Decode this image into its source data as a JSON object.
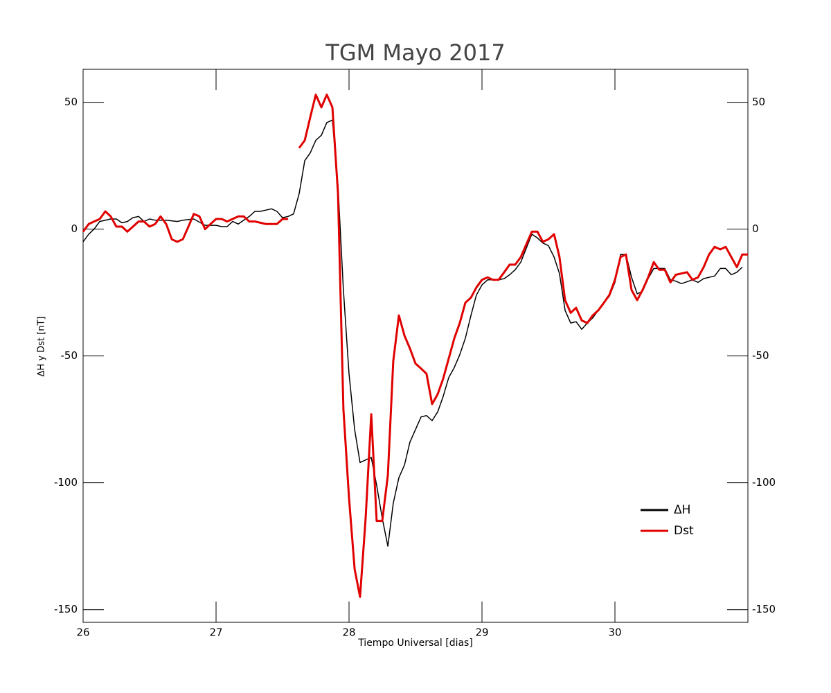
{
  "chart_data": {
    "type": "line",
    "title": "TGM Mayo 2017",
    "x_label": "Tiempo Universal [dias]",
    "y_label": "ΔH y Dst [nT]",
    "xlim": [
      26,
      31
    ],
    "xticks": [
      26,
      27,
      28,
      29,
      30
    ],
    "ylim": [
      -155,
      63
    ],
    "yticks": [
      -150,
      -100,
      -50,
      0,
      50
    ],
    "legend": "lower right",
    "series": [
      {
        "name": "ΔH",
        "color": "#000000",
        "x": [
          26,
          26.042,
          26.083,
          26.125,
          26.208,
          26.25,
          26.292,
          26.333,
          26.375,
          26.417,
          26.458,
          26.5,
          26.542,
          26.625,
          26.708,
          26.75,
          26.833,
          26.917,
          26.958,
          27,
          27.042,
          27.083,
          27.125,
          27.167,
          27.208,
          27.25,
          27.292,
          27.333,
          27.417,
          27.458,
          27.5,
          27.542,
          27.583,
          27.625,
          27.667,
          27.708,
          27.75,
          27.792,
          27.833,
          27.875,
          27.917,
          27.958,
          28,
          28.042,
          28.083,
          28.125,
          28.167,
          28.208,
          28.25,
          28.292,
          28.333,
          28.375,
          28.417,
          28.458,
          28.5,
          28.542,
          28.583,
          28.625,
          28.667,
          28.708,
          28.75,
          28.792,
          28.833,
          28.875,
          28.917,
          28.958,
          29,
          29.042,
          29.083,
          29.125,
          29.167,
          29.208,
          29.25,
          29.292,
          29.375,
          29.417,
          29.458,
          29.5,
          29.542,
          29.583,
          29.625,
          29.667,
          29.708,
          29.75,
          29.792,
          29.833,
          29.875,
          29.917,
          29.958,
          30,
          30.042,
          30.083,
          30.125,
          30.167,
          30.208,
          30.25,
          30.292,
          30.333,
          30.375,
          30.417,
          30.458,
          30.5,
          30.583,
          30.625,
          30.667,
          30.708,
          30.75,
          30.792,
          30.833,
          30.875,
          30.917,
          30.958
        ],
        "values": [
          -5,
          -2,
          0,
          3,
          4,
          4,
          2.5,
          3,
          4.5,
          5,
          3,
          4,
          3.5,
          3.5,
          3,
          3.5,
          4,
          1.5,
          1.5,
          1.5,
          1,
          1,
          3,
          2,
          3.5,
          5,
          7,
          7,
          8,
          7,
          4.5,
          5,
          6,
          14,
          27,
          30,
          35,
          37,
          42,
          43,
          17,
          -24,
          -57,
          -79,
          -92,
          -91,
          -90,
          -101,
          -114,
          -125,
          -108,
          -98,
          -93,
          -84,
          -79,
          -74,
          -73.5,
          -75.5,
          -72,
          -66,
          -58.5,
          -54.5,
          -49.5,
          -43,
          -34,
          -26,
          -22,
          -20,
          -20,
          -20,
          -19.5,
          -18,
          -16,
          -13,
          -2,
          -3.5,
          -5.5,
          -6.5,
          -11,
          -17.5,
          -32,
          -37,
          -36.5,
          -39.5,
          -37,
          -35,
          -32,
          -29,
          -26.5,
          -21,
          -10,
          -10,
          -19,
          -25.5,
          -24.5,
          -19.5,
          -15.5,
          -15.5,
          -15.5,
          -20,
          -20.5,
          -21.5,
          -20,
          -21,
          -19.5,
          -19,
          -18.5,
          -15.5,
          -15.5,
          -18,
          -17,
          -15
        ]
      },
      {
        "name": "Dst",
        "color": "#e00000",
        "x": [
          26,
          26.042,
          26.125,
          26.167,
          26.208,
          26.25,
          26.292,
          26.333,
          26.375,
          26.417,
          26.458,
          26.5,
          26.542,
          26.583,
          26.625,
          26.667,
          26.708,
          26.75,
          26.792,
          26.833,
          26.875,
          26.917,
          26.958,
          27,
          27.042,
          27.083,
          27.167,
          27.208,
          27.25,
          27.292,
          27.375,
          27.458,
          27.5,
          27.542,
          27.583,
          27.625,
          27.667,
          27.708,
          27.75,
          27.792,
          27.833,
          27.875,
          27.917,
          27.958,
          28,
          28.042,
          28.083,
          28.125,
          28.167,
          28.208,
          28.25,
          28.292,
          28.333,
          28.375,
          28.417,
          28.458,
          28.5,
          28.542,
          28.583,
          28.625,
          28.667,
          28.708,
          28.75,
          28.792,
          28.833,
          28.875,
          28.917,
          28.958,
          29,
          29.042,
          29.083,
          29.125,
          29.167,
          29.208,
          29.25,
          29.292,
          29.375,
          29.417,
          29.458,
          29.5,
          29.542,
          29.583,
          29.625,
          29.667,
          29.708,
          29.75,
          29.792,
          29.833,
          29.875,
          29.917,
          29.958,
          30,
          30.042,
          30.083,
          30.125,
          30.167,
          30.208,
          30.25,
          30.292,
          30.333,
          30.375,
          30.417,
          30.458,
          30.542,
          30.583,
          30.625,
          30.667,
          30.708,
          30.75,
          30.792,
          30.833,
          30.875,
          30.917,
          30.958,
          31
        ],
        "values": [
          -1,
          2,
          4,
          7,
          5,
          1,
          1,
          -1,
          1,
          3,
          3,
          1,
          2,
          5,
          2,
          -4,
          -5,
          -4,
          1,
          6,
          5,
          0,
          2,
          4,
          4,
          3,
          5,
          5,
          3,
          3,
          2,
          2,
          4,
          4,
          null,
          32,
          35,
          44,
          53,
          48,
          53,
          48,
          14,
          -71,
          -106,
          -134,
          -145,
          -114,
          -73,
          -115,
          -115,
          -97,
          -52,
          -34,
          -42,
          -47,
          -53,
          -55,
          -57,
          -69,
          -65,
          -59,
          -51,
          -43,
          -37,
          -29,
          -27,
          -23,
          -20,
          -19,
          -20,
          -20,
          -17,
          -14,
          -14,
          -11,
          -1,
          -1,
          -5,
          -4,
          -2,
          -11,
          -28,
          -33,
          -31,
          -36,
          -37,
          -34,
          -32,
          -29,
          -26,
          -20,
          -11,
          -10,
          -24,
          -28,
          -24,
          -19,
          -13,
          -16,
          -16,
          -21,
          -18,
          -17,
          -20,
          -19,
          -15,
          -10,
          -7,
          -8,
          -7,
          -11,
          -15,
          -10,
          -10
        ]
      }
    ]
  }
}
